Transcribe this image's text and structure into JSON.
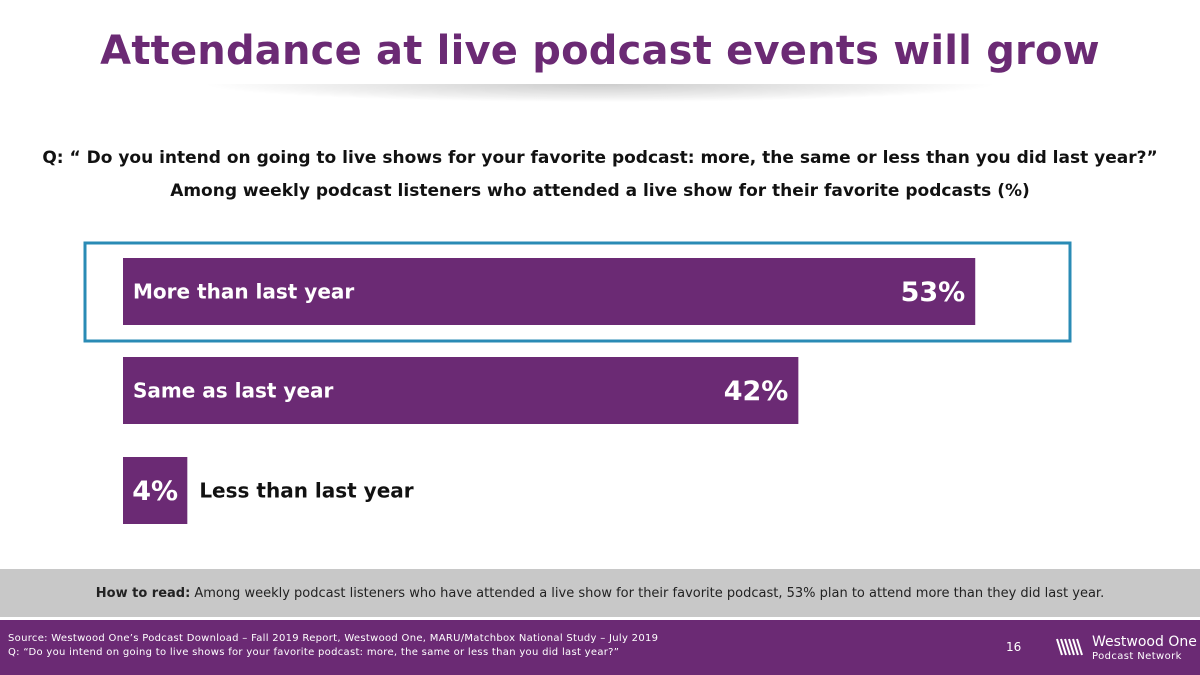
{
  "title": "Attendance at live podcast events will grow",
  "question": "Q: “ Do you intend on going to live shows for your favorite podcast: more, the same or less than you did last year?”",
  "base": "Among weekly podcast listeners who attended a live show for their favorite podcasts (%)",
  "chart_data": {
    "type": "bar",
    "orientation": "horizontal",
    "categories": [
      "More than last year",
      "Same as last year",
      "Less than last year"
    ],
    "values": [
      53,
      42,
      4
    ],
    "value_labels": [
      "53%",
      "42%",
      "4%"
    ],
    "unit": "%",
    "highlighted_category": "More than last year",
    "grid": false,
    "legend": "none",
    "colors": {
      "bar": "#6b2a74",
      "highlight": "#2a8bb5"
    }
  },
  "how_to_read": {
    "label": "How to read:",
    "text": "Among weekly podcast listeners who have attended a live show for their favorite podcast, 53% plan to attend more than they did last year."
  },
  "footer": {
    "source": "Source: Westwood One’s Podcast Download – Fall 2019 Report, Westwood One, MARU/Matchbox National Study – July 2019",
    "question": "Q: “Do you intend on going to live shows for your favorite podcast: more, the same or less than you did last year?”",
    "page_number": "16",
    "logo_name": "Westwood One",
    "logo_sub": "Podcast Network",
    "logo_icon": "westwood-one-waveform-icon"
  },
  "colors": {
    "brand_purple": "#6b2a74",
    "howto_band": "#c8c8c8"
  }
}
